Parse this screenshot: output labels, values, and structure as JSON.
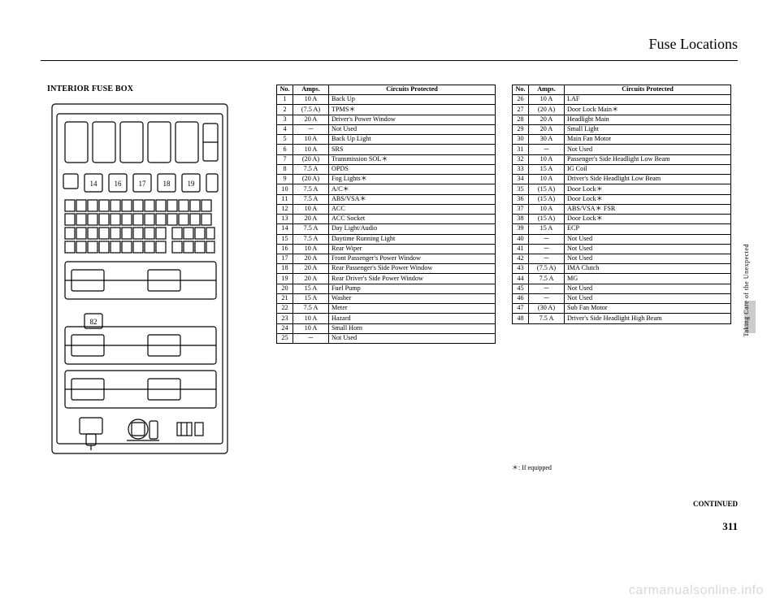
{
  "page": {
    "title": "Fuse Locations",
    "section_label": "INTERIOR FUSE BOX",
    "continued": "CONTINUED",
    "page_number": "311",
    "side_text": "Taking Care of the Unexpected",
    "footnote": "＊: If equipped",
    "watermark": "carmanualsonline.info"
  },
  "columns": [
    "No.",
    "Amps.",
    "Circuits Protected"
  ],
  "fuses_left": [
    {
      "no": "1",
      "amp": "10 A",
      "cir": "Back Up"
    },
    {
      "no": "2",
      "amp": "(7.5 A)",
      "cir": "TPMS＊"
    },
    {
      "no": "3",
      "amp": "20 A",
      "cir": "Driver's Power Window"
    },
    {
      "no": "4",
      "amp": "－",
      "cir": "Not Used"
    },
    {
      "no": "5",
      "amp": "10 A",
      "cir": "Back Up Light"
    },
    {
      "no": "6",
      "amp": "10 A",
      "cir": "SRS"
    },
    {
      "no": "7",
      "amp": "(20 A)",
      "cir": "Transmission SOL＊"
    },
    {
      "no": "8",
      "amp": "7.5 A",
      "cir": "OPDS"
    },
    {
      "no": "9",
      "amp": "(20 A)",
      "cir": "Fog Lights＊"
    },
    {
      "no": "10",
      "amp": "7.5 A",
      "cir": "A/C＊"
    },
    {
      "no": "11",
      "amp": "7.5 A",
      "cir": "ABS/VSA＊"
    },
    {
      "no": "12",
      "amp": "10 A",
      "cir": "ACC"
    },
    {
      "no": "13",
      "amp": "20 A",
      "cir": "ACC Socket"
    },
    {
      "no": "14",
      "amp": "7.5 A",
      "cir": "Day Light/Audio"
    },
    {
      "no": "15",
      "amp": "7.5 A",
      "cir": "Daytime Running Light"
    },
    {
      "no": "16",
      "amp": "10 A",
      "cir": "Rear Wiper"
    },
    {
      "no": "17",
      "amp": "20 A",
      "cir": "Front Passenger's Power Window"
    },
    {
      "no": "18",
      "amp": "20 A",
      "cir": "Rear Passenger's Side Power Window"
    },
    {
      "no": "19",
      "amp": "20 A",
      "cir": "Rear Driver's Side Power Window"
    },
    {
      "no": "20",
      "amp": "15 A",
      "cir": "Fuel Pump"
    },
    {
      "no": "21",
      "amp": "15 A",
      "cir": "Washer"
    },
    {
      "no": "22",
      "amp": "7.5 A",
      "cir": "Meter"
    },
    {
      "no": "23",
      "amp": "10 A",
      "cir": "Hazard"
    },
    {
      "no": "24",
      "amp": "10 A",
      "cir": "Small Horn"
    },
    {
      "no": "25",
      "amp": "－",
      "cir": "Not Used"
    }
  ],
  "fuses_right": [
    {
      "no": "26",
      "amp": "10 A",
      "cir": "LAF"
    },
    {
      "no": "27",
      "amp": "(20 A)",
      "cir": "Door Lock Main＊"
    },
    {
      "no": "28",
      "amp": "20 A",
      "cir": "Headlight Main"
    },
    {
      "no": "29",
      "amp": "20 A",
      "cir": "Small Light"
    },
    {
      "no": "30",
      "amp": "30 A",
      "cir": "Main Fan Motor"
    },
    {
      "no": "31",
      "amp": "－",
      "cir": "Not Used"
    },
    {
      "no": "32",
      "amp": "10 A",
      "cir": "Passenger's Side Headlight Low Beam"
    },
    {
      "no": "33",
      "amp": "15 A",
      "cir": "IG Coil"
    },
    {
      "no": "34",
      "amp": "10 A",
      "cir": "Driver's Side Headlight Low Beam"
    },
    {
      "no": "35",
      "amp": "(15 A)",
      "cir": "Door Lock＊"
    },
    {
      "no": "36",
      "amp": "(15 A)",
      "cir": "Door Lock＊"
    },
    {
      "no": "37",
      "amp": "10 A",
      "cir": "ABS/VSA＊ FSR"
    },
    {
      "no": "38",
      "amp": "(15 A)",
      "cir": "Door Lock＊"
    },
    {
      "no": "39",
      "amp": "15 A",
      "cir": "ECP"
    },
    {
      "no": "40",
      "amp": "－",
      "cir": "Not Used"
    },
    {
      "no": "41",
      "amp": "－",
      "cir": "Not Used"
    },
    {
      "no": "42",
      "amp": "－",
      "cir": "Not Used"
    },
    {
      "no": "43",
      "amp": "(7.5 A)",
      "cir": "IMA Clutch"
    },
    {
      "no": "44",
      "amp": "7.5 A",
      "cir": "MG"
    },
    {
      "no": "45",
      "amp": "－",
      "cir": "Not Used"
    },
    {
      "no": "46",
      "amp": "－",
      "cir": "Not Used"
    },
    {
      "no": "47",
      "amp": "(30 A)",
      "cir": "Sub Fan Motor"
    },
    {
      "no": "48",
      "amp": "7.5 A",
      "cir": "Driver's Side Headlight High Beam"
    }
  ],
  "style": {
    "page_bg": "#ffffff",
    "text_color": "#000000",
    "border_color": "#000000",
    "watermark_color": "#d8d8d8",
    "tab_color": "#cccccc",
    "title_fontsize": 18,
    "table_fontsize": 8.2,
    "label_fontsize": 10
  }
}
